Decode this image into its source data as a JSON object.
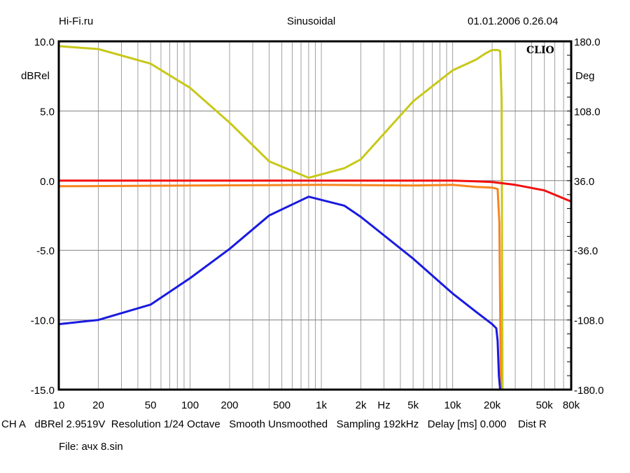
{
  "header": {
    "left": "Hi-Fi.ru",
    "center": "Sinusoidal",
    "right": "01.01.2006 0.26.04"
  },
  "logo": "CLIO",
  "footer": {
    "channel": "CH A",
    "units": "dBRel 2.9519V",
    "resolution": "Resolution 1/24 Octave",
    "smooth": "Smooth Unsmoothed",
    "sampling": "Sampling 192kHz",
    "delay": "Delay [ms] 0.000",
    "dist": "Dist R",
    "file": "File: ачх 8.sin"
  },
  "chart_data": {
    "type": "line",
    "xscale": "log",
    "xlim": [
      10,
      80000
    ],
    "ylim": [
      -15,
      10
    ],
    "y2lim": [
      -180,
      180
    ],
    "ylabel": "dBRel",
    "y2label": "Deg",
    "xunit_label": "Hz",
    "grid": true,
    "xticks": [
      {
        "v": 10,
        "l": "10"
      },
      {
        "v": 20,
        "l": "20"
      },
      {
        "v": 50,
        "l": "50"
      },
      {
        "v": 100,
        "l": "100"
      },
      {
        "v": 200,
        "l": "200"
      },
      {
        "v": 500,
        "l": "500"
      },
      {
        "v": 1000,
        "l": "1k"
      },
      {
        "v": 2000,
        "l": "2k"
      },
      {
        "v": 3000,
        "l": "Hz"
      },
      {
        "v": 5000,
        "l": "5k"
      },
      {
        "v": 10000,
        "l": "10k"
      },
      {
        "v": 20000,
        "l": "20k"
      },
      {
        "v": 50000,
        "l": "50k"
      },
      {
        "v": 80000,
        "l": "80k"
      }
    ],
    "yticks": [
      {
        "v": 10,
        "l": "10.0"
      },
      {
        "v": 5,
        "l": "5.0"
      },
      {
        "v": 0,
        "l": "0.0"
      },
      {
        "v": -5,
        "l": "-5.0"
      },
      {
        "v": -10,
        "l": "-10.0"
      },
      {
        "v": -15,
        "l": "-15.0"
      }
    ],
    "y2ticks": [
      {
        "v": 180,
        "l": "180.0"
      },
      {
        "v": 108,
        "l": "108.0"
      },
      {
        "v": 36,
        "l": "36.0"
      },
      {
        "v": -36,
        "l": "-36.0"
      },
      {
        "v": -108,
        "l": "-108.0"
      },
      {
        "v": -180,
        "l": "-180.0"
      }
    ],
    "series": [
      {
        "name": "phase",
        "axis": "right",
        "color": "#c8c81a",
        "x": [
          10,
          20,
          50,
          100,
          200,
          400,
          800,
          1500,
          2000,
          5000,
          10000,
          15000,
          18000,
          20000,
          22000,
          23000,
          23600,
          24000
        ],
        "y": [
          175,
          172,
          157,
          132,
          96,
          56,
          39,
          49,
          58,
          118,
          150,
          161,
          168,
          171,
          171,
          170,
          120,
          -180
        ]
      },
      {
        "name": "red",
        "axis": "left",
        "color": "#f01010",
        "x": [
          10,
          1000,
          10000,
          15000,
          20000,
          30000,
          50000,
          80000
        ],
        "y": [
          0,
          0,
          0,
          -0.05,
          -0.1,
          -0.3,
          -0.7,
          -1.5
        ]
      },
      {
        "name": "orange",
        "axis": "left",
        "color": "#f7861e",
        "x": [
          10,
          100,
          1000,
          5000,
          10000,
          15000,
          20000,
          22000,
          22700,
          23000,
          23300
        ],
        "y": [
          -0.4,
          -0.35,
          -0.3,
          -0.35,
          -0.3,
          -0.45,
          -0.5,
          -0.6,
          -3,
          -9,
          -15
        ]
      },
      {
        "name": "blue",
        "axis": "left",
        "color": "#1a1ae0",
        "x": [
          10,
          20,
          50,
          100,
          200,
          400,
          800,
          1500,
          2000,
          5000,
          10000,
          15000,
          20000,
          21500,
          22000,
          22500,
          23000
        ],
        "y": [
          -10.3,
          -10.0,
          -8.9,
          -7.0,
          -4.9,
          -2.5,
          -1.15,
          -1.8,
          -2.6,
          -5.6,
          -8.1,
          -9.4,
          -10.3,
          -10.6,
          -11.5,
          -14,
          -15
        ]
      }
    ]
  }
}
